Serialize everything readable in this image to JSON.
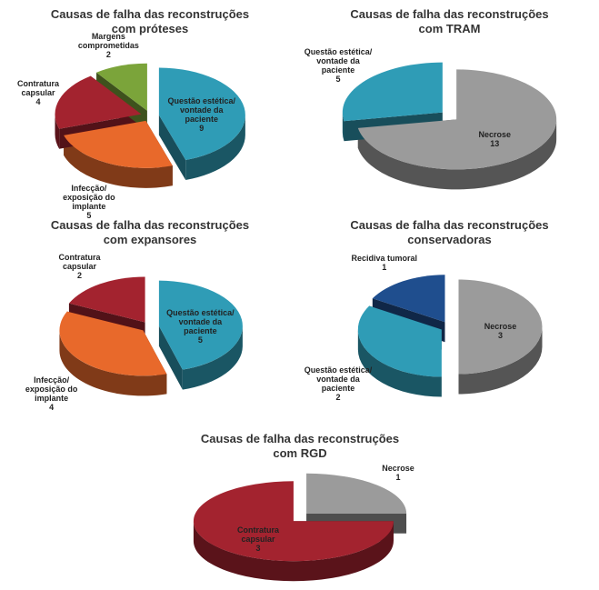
{
  "chart_data": [
    {
      "type": "pie",
      "title": "Causas de falha das reconstruções com próteses",
      "categories": [
        "Questão estética/ vontade da paciente",
        "Infecção/ exposição do implante",
        "Contratura capsular",
        "Margens comprometidas"
      ],
      "values": [
        9,
        5,
        4,
        2
      ],
      "colors": [
        "#2f9cb6",
        "#e8692b",
        "#a3232f",
        "#7ba43a"
      ]
    },
    {
      "type": "pie",
      "title": "Causas de falha das reconstruções com TRAM",
      "categories": [
        "Necrose",
        "Questão estética/ vontade da paciente"
      ],
      "values": [
        13,
        5
      ],
      "colors": [
        "#9b9b9b",
        "#2f9cb6"
      ]
    },
    {
      "type": "pie",
      "title": "Causas de falha das reconstruções com expansores",
      "categories": [
        "Questão estética/ vontade da paciente",
        "Infecção/ exposição do implante",
        "Contratura capsular"
      ],
      "values": [
        5,
        4,
        2
      ],
      "colors": [
        "#2f9cb6",
        "#e8692b",
        "#a3232f"
      ]
    },
    {
      "type": "pie",
      "title": "Causas de falha das reconstruções conservadoras",
      "categories": [
        "Necrose",
        "Questão estética/ vontade da paciente",
        "Recidiva tumoral"
      ],
      "values": [
        3,
        2,
        1
      ],
      "colors": [
        "#9b9b9b",
        "#2f9cb6",
        "#1f4e8e"
      ]
    },
    {
      "type": "pie",
      "title": "Causas de falha das reconstruções com RGD",
      "categories": [
        "Necrose",
        "Contratura capsular"
      ],
      "values": [
        1,
        3
      ],
      "colors": [
        "#9b9b9b",
        "#a3232f"
      ]
    }
  ]
}
